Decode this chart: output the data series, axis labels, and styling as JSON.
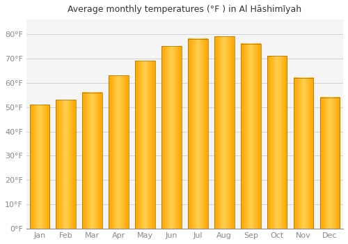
{
  "title": "Average monthly temperatures (°F ) in Al Hāshimīyah",
  "months": [
    "Jan",
    "Feb",
    "Mar",
    "Apr",
    "May",
    "Jun",
    "Jul",
    "Aug",
    "Sep",
    "Oct",
    "Nov",
    "Dec"
  ],
  "values": [
    51,
    53,
    56,
    63,
    69,
    75,
    78,
    79,
    76,
    71,
    62,
    54
  ],
  "bar_color_main": "#FFA500",
  "bar_color_light": "#FFD060",
  "bar_edge_color": "#B8860B",
  "background_color": "#FFFFFF",
  "plot_bg_color": "#F5F5F5",
  "grid_color": "#CCCCCC",
  "tick_color": "#888888",
  "title_color": "#333333",
  "ylim": [
    0,
    86
  ],
  "yticks": [
    0,
    10,
    20,
    30,
    40,
    50,
    60,
    70,
    80
  ],
  "ytick_labels": [
    "0°F",
    "10°F",
    "20°F",
    "30°F",
    "40°F",
    "50°F",
    "60°F",
    "70°F",
    "80°F"
  ],
  "title_fontsize": 9,
  "tick_fontsize": 8,
  "bar_width": 0.75
}
